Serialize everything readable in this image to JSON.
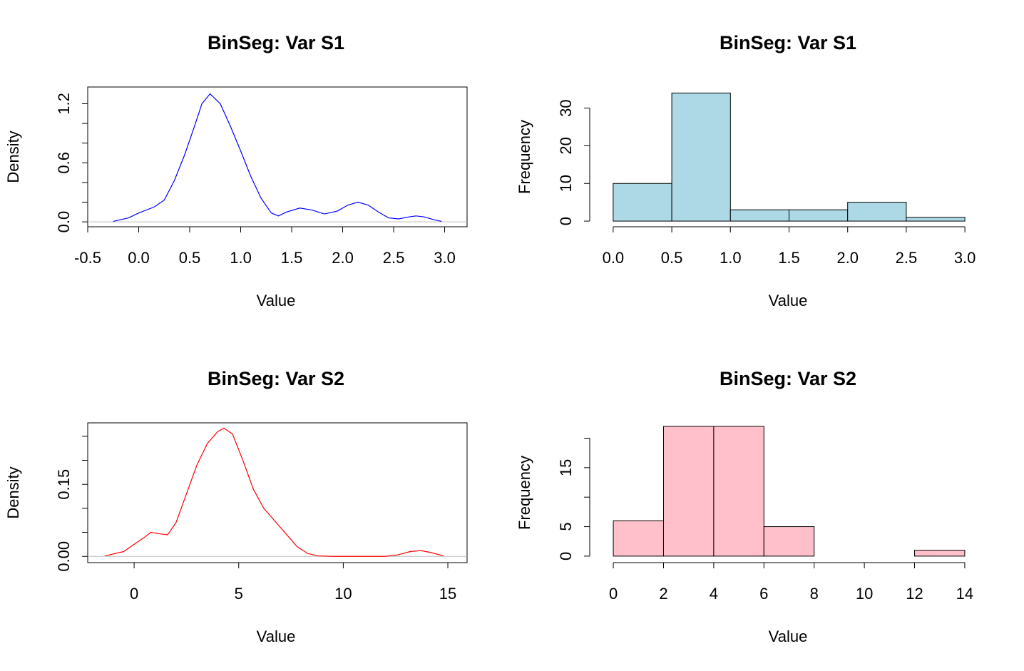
{
  "chart_data": [
    {
      "type": "density",
      "title": "BinSeg: Var S1",
      "xlabel": "Value",
      "ylabel": "Density",
      "color": "#0000ff",
      "x": [
        -0.25,
        -0.1,
        0.0,
        0.15,
        0.25,
        0.35,
        0.45,
        0.55,
        0.62,
        0.7,
        0.8,
        0.9,
        1.0,
        1.1,
        1.2,
        1.3,
        1.37,
        1.45,
        1.58,
        1.7,
        1.82,
        1.95,
        2.05,
        2.15,
        2.25,
        2.35,
        2.45,
        2.55,
        2.65,
        2.72,
        2.8,
        2.9,
        2.97
      ],
      "values": [
        0.005,
        0.04,
        0.09,
        0.15,
        0.22,
        0.42,
        0.68,
        0.98,
        1.2,
        1.3,
        1.2,
        0.97,
        0.72,
        0.46,
        0.24,
        0.09,
        0.06,
        0.1,
        0.14,
        0.12,
        0.08,
        0.11,
        0.17,
        0.2,
        0.17,
        0.1,
        0.04,
        0.03,
        0.05,
        0.06,
        0.05,
        0.02,
        0.005
      ],
      "xlim": [
        -0.5,
        3.22
      ],
      "ylim": [
        -0.05,
        1.37
      ],
      "xticks": [
        -0.5,
        {
          "value": 0,
          "label": "0.0"
        },
        0.5,
        {
          "value": 1,
          "label": "1.0"
        },
        1.5,
        {
          "value": 2,
          "label": "2.0"
        },
        2.5,
        {
          "value": 3,
          "label": "3.0"
        }
      ],
      "yticks": [
        {
          "value": 0,
          "label": "0.0"
        },
        0.6,
        1.2
      ],
      "yminor_ticks": [
        0.2,
        0.4,
        0.8,
        1.0
      ],
      "zero_line": true,
      "zero_line_color": "#bebebe",
      "box": true
    },
    {
      "type": "histogram",
      "title": "BinSeg: Var S1",
      "xlabel": "Value",
      "ylabel": "Frequency",
      "color": "#add8e6",
      "bins": [
        0,
        0.5,
        1,
        1.5,
        2,
        2.5,
        3
      ],
      "values": [
        10,
        34,
        3,
        3,
        5,
        1
      ],
      "xlim": [
        -0.2,
        3.2
      ],
      "ylim": [
        -1.5,
        35.6
      ],
      "xticks": [
        {
          "value": 0,
          "label": "0.0"
        },
        0.5,
        {
          "value": 1,
          "label": "1.0"
        },
        1.5,
        {
          "value": 2,
          "label": "2.0"
        },
        2.5,
        {
          "value": 3,
          "label": "3.0"
        }
      ],
      "yticks": [
        0,
        10,
        20,
        30
      ],
      "box": false
    },
    {
      "type": "density",
      "title": "BinSeg: Var S2",
      "xlabel": "Value",
      "ylabel": "Density",
      "color": "#ff0000",
      "x": [
        -1.4,
        -0.5,
        0,
        0.5,
        0.8,
        1.2,
        1.6,
        2.0,
        2.5,
        3.0,
        3.5,
        4.0,
        4.3,
        4.7,
        5.2,
        5.7,
        6.2,
        6.8,
        7.3,
        7.8,
        8.3,
        8.8,
        9.5,
        12.0,
        12.6,
        13.2,
        13.7,
        14.2,
        14.8
      ],
      "values": [
        0.001,
        0.01,
        0.025,
        0.04,
        0.05,
        0.047,
        0.045,
        0.07,
        0.13,
        0.19,
        0.235,
        0.26,
        0.267,
        0.255,
        0.2,
        0.14,
        0.1,
        0.07,
        0.045,
        0.02,
        0.006,
        0.001,
        0,
        0,
        0.003,
        0.01,
        0.012,
        0.008,
        0.001
      ],
      "xlim": [
        -2.22,
        15.92
      ],
      "ylim": [
        -0.013,
        0.278
      ],
      "xticks": [
        0,
        5,
        10,
        15
      ],
      "yticks": [
        {
          "value": 0,
          "label": "0.00"
        },
        0.15
      ],
      "yminor_ticks": [
        0.05,
        0.1,
        0.2,
        0.25
      ],
      "zero_line": true,
      "zero_line_color": "#bebebe",
      "box": true
    },
    {
      "type": "histogram",
      "title": "BinSeg: Var S2",
      "xlabel": "Value",
      "ylabel": "Frequency",
      "color": "#ffc0cb",
      "bins": [
        0,
        2,
        4,
        6,
        8,
        10,
        12,
        14
      ],
      "values": [
        6,
        22,
        22,
        5,
        0,
        0,
        1
      ],
      "xlim": [
        -0.94,
        14.94
      ],
      "ylim": [
        -1.1,
        22.6
      ],
      "xticks": [
        0,
        2,
        4,
        6,
        8,
        10,
        12,
        14
      ],
      "yticks": [
        0,
        5,
        15
      ],
      "yminor_ticks": [
        10,
        20
      ],
      "box": false
    }
  ]
}
